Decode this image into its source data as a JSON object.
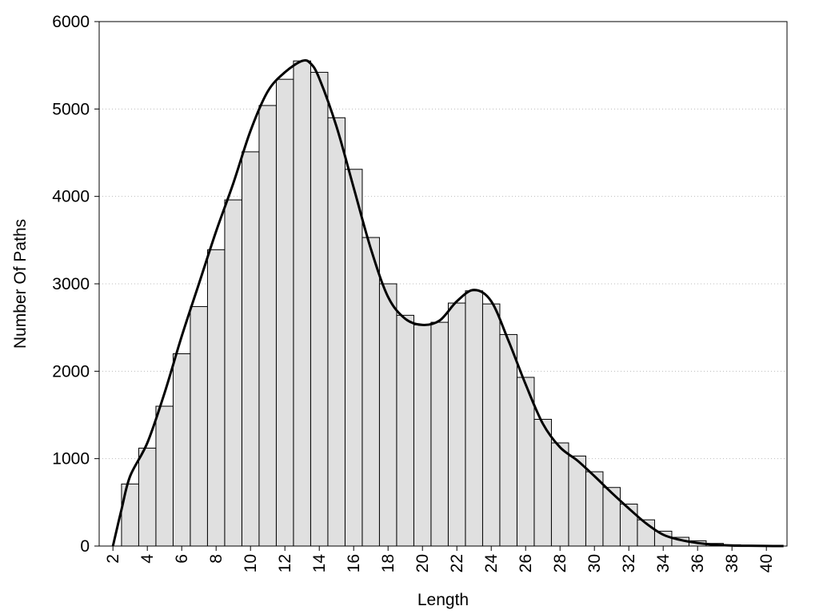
{
  "chart_data": {
    "type": "bar",
    "title": "",
    "xlabel": "Length",
    "ylabel": "Number Of Paths",
    "xlim": [
      1.2,
      41.2
    ],
    "ylim": [
      0,
      6000
    ],
    "grid": "horizontal-dotted",
    "bar_color": "#e0e0e0",
    "line_color": "#000000",
    "x_ticks": [
      "2",
      "4",
      "6",
      "8",
      "10",
      "12",
      "14",
      "16",
      "18",
      "20",
      "22",
      "24",
      "26",
      "28",
      "30",
      "32",
      "34",
      "36",
      "38",
      "40"
    ],
    "y_ticks": [
      "0",
      "1000",
      "2000",
      "3000",
      "4000",
      "5000",
      "6000"
    ],
    "categories": [
      2,
      3,
      4,
      5,
      6,
      7,
      8,
      9,
      10,
      11,
      12,
      13,
      14,
      15,
      16,
      17,
      18,
      19,
      20,
      21,
      22,
      23,
      24,
      25,
      26,
      27,
      28,
      29,
      30,
      31,
      32,
      33,
      34,
      35,
      36,
      37,
      38,
      39,
      40
    ],
    "values": [
      0,
      710,
      1120,
      1600,
      2200,
      2740,
      3390,
      3960,
      4510,
      5040,
      5340,
      5550,
      5420,
      4900,
      4310,
      3530,
      3000,
      2640,
      2530,
      2560,
      2780,
      2920,
      2770,
      2420,
      1930,
      1450,
      1180,
      1030,
      850,
      670,
      480,
      300,
      170,
      100,
      60,
      30,
      15,
      8,
      4
    ],
    "series": [
      {
        "type": "line",
        "x": [
          2,
          2.5,
          3,
          4,
          5,
          6,
          7,
          8,
          9,
          10,
          11,
          12,
          13,
          13.5,
          14,
          15,
          16,
          17,
          18,
          19,
          20,
          21,
          22,
          23,
          24,
          25,
          26,
          27,
          28,
          29,
          30,
          31,
          32,
          33,
          34,
          35,
          36,
          37,
          38,
          39,
          40,
          41
        ],
        "values": [
          0,
          420,
          800,
          1180,
          1750,
          2400,
          3000,
          3600,
          4150,
          4750,
          5200,
          5420,
          5550,
          5520,
          5350,
          4800,
          4100,
          3400,
          2850,
          2600,
          2530,
          2580,
          2800,
          2930,
          2800,
          2350,
          1850,
          1400,
          1130,
          980,
          800,
          610,
          430,
          260,
          130,
          70,
          35,
          15,
          6,
          3,
          1,
          0
        ]
      }
    ]
  }
}
